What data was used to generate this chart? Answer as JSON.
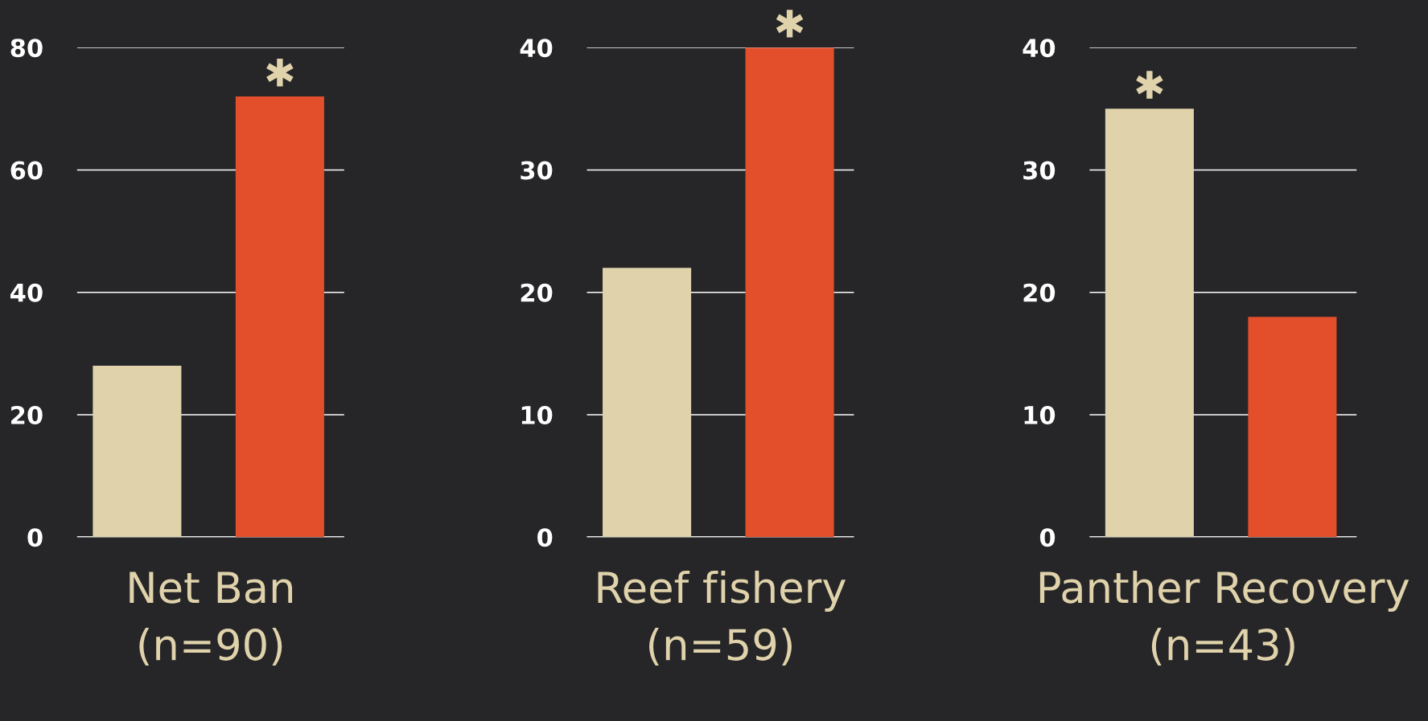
{
  "chart_data": [
    {
      "type": "bar",
      "categories": [
        null,
        null
      ],
      "values": [
        28,
        72
      ],
      "colors": [
        "#e0d3ab",
        "#e34e2b"
      ],
      "ylim": [
        0,
        80
      ],
      "yticks": [
        0,
        20,
        40,
        60,
        80
      ],
      "grid": "y",
      "tick_labels": "y",
      "xlabel": "Net Ban\n(n=90)",
      "annotations": [
        {
          "text": "✱",
          "y": 72
        }
      ]
    },
    {
      "type": "bar",
      "categories": [
        null,
        null
      ],
      "values": [
        22,
        40
      ],
      "colors": [
        "#e0d3ab",
        "#e34e2b"
      ],
      "ylim": [
        0,
        40
      ],
      "yticks": [
        0,
        10,
        20,
        30,
        40
      ],
      "grid": "y",
      "tick_labels": "y",
      "xlabel": "Reef fishery\n(n=59)",
      "annotations": [
        {
          "text": "✱",
          "y": 40
        }
      ]
    },
    {
      "type": "bar",
      "categories": [
        null,
        null
      ],
      "values": [
        35,
        18
      ],
      "colors": [
        "#e0d3ab",
        "#e34e2b"
      ],
      "ylim": [
        0,
        40
      ],
      "yticks": [
        0,
        10,
        20,
        30,
        40
      ],
      "grid": "y",
      "tick_labels": "y",
      "xlabel": "Panther Recovery\n(n=43)",
      "annotations": [
        {
          "text": "✱",
          "y": 35
        }
      ]
    }
  ]
}
